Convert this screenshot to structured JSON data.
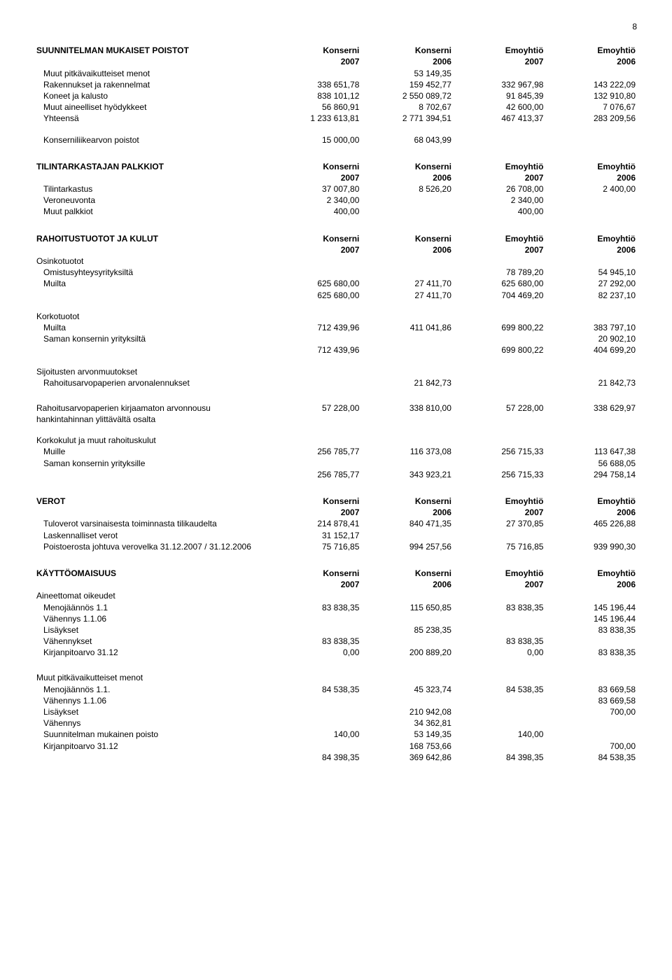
{
  "page_number": "8",
  "col_headers": {
    "c1_a": "Konserni",
    "c1_b": "2007",
    "c2_a": "Konserni",
    "c2_b": "2006",
    "c3_a": "Emoyhtiö",
    "c3_b": "2007",
    "c4_a": "Emoyhtiö",
    "c4_b": "2006"
  },
  "sec1": {
    "title": "SUUNNITELMAN MUKAISET POISTOT",
    "rows": [
      {
        "l": "Muut pitkävaikutteiset menot",
        "ind": 1,
        "v": [
          "",
          "53 149,35",
          "",
          ""
        ]
      },
      {
        "l": "Rakennukset ja rakennelmat",
        "ind": 1,
        "v": [
          "338 651,78",
          "159 452,77",
          "332 967,98",
          "143 222,09"
        ]
      },
      {
        "l": "Koneet ja kalusto",
        "ind": 1,
        "v": [
          "838 101,12",
          "2 550 089,72",
          "91 845,39",
          "132 910,80"
        ]
      },
      {
        "l": "Muut aineelliset hyödykkeet",
        "ind": 1,
        "v": [
          "56 860,91",
          "8 702,67",
          "42 600,00",
          "7 076,67"
        ]
      },
      {
        "l": "Yhteensä",
        "ind": 1,
        "v": [
          "1 233 613,81",
          "2 771 394,51",
          "467 413,37",
          "283 209,56"
        ]
      }
    ],
    "extra": {
      "l": "Konserniliikearvon poistot",
      "ind": 1,
      "v": [
        "15 000,00",
        "68 043,99",
        "",
        ""
      ]
    }
  },
  "sec2": {
    "title": "TILINTARKASTAJAN PALKKIOT",
    "rows": [
      {
        "l": "Tilintarkastus",
        "ind": 1,
        "v": [
          "37 007,80",
          "8 526,20",
          "26 708,00",
          "2 400,00"
        ]
      },
      {
        "l": "Veroneuvonta",
        "ind": 1,
        "v": [
          "2 340,00",
          "",
          "2 340,00",
          ""
        ]
      },
      {
        "l": "Muut palkkiot",
        "ind": 1,
        "v": [
          "400,00",
          "",
          "400,00",
          ""
        ]
      }
    ]
  },
  "sec3": {
    "title": "RAHOITUSTUOTOT JA KULUT",
    "groups": [
      {
        "header": "Osinkotuotot",
        "rows": [
          {
            "l": "Omistusyhteysyrityksiltä",
            "ind": 1,
            "v": [
              "",
              "",
              "78 789,20",
              "54 945,10"
            ]
          },
          {
            "l": "Muilta",
            "ind": 1,
            "v": [
              "625 680,00",
              "27 411,70",
              "625 680,00",
              "27 292,00"
            ]
          },
          {
            "l": "",
            "ind": 1,
            "v": [
              "625 680,00",
              "27 411,70",
              "704 469,20",
              "82 237,10"
            ]
          }
        ]
      },
      {
        "header": "Korkotuotot",
        "rows": [
          {
            "l": "Muilta",
            "ind": 1,
            "v": [
              "712 439,96",
              "411 041,86",
              "699 800,22",
              "383 797,10"
            ]
          },
          {
            "l": "Saman konsernin yrityksiltä",
            "ind": 1,
            "v": [
              "",
              "",
              "",
              "20 902,10"
            ]
          },
          {
            "l": "",
            "ind": 1,
            "v": [
              "712 439,96",
              "",
              "699 800,22",
              "404 699,20"
            ]
          }
        ]
      },
      {
        "header": "Sijoitusten arvonmuutokset",
        "rows": [
          {
            "l": "Rahoitusarvopaperien arvonalennukset",
            "ind": 1,
            "v": [
              "",
              "21 842,73",
              "",
              "21 842,73"
            ]
          }
        ]
      }
    ],
    "rows2": [
      {
        "l": "Rahoitusarvopaperien kirjaamaton arvonnousu",
        "ind": 0,
        "v": [
          "57 228,00",
          "338 810,00",
          "57 228,00",
          "338 629,97"
        ]
      },
      {
        "l": "hankintahinnan ylittävältä osalta",
        "ind": 0,
        "v": [
          "",
          "",
          "",
          ""
        ]
      }
    ],
    "group2": {
      "header": "Korkokulut ja muut rahoituskulut",
      "rows": [
        {
          "l": "Muille",
          "ind": 1,
          "v": [
            "256 785,77",
            "116 373,08",
            "256 715,33",
            "113 647,38"
          ]
        },
        {
          "l": "Saman konsernin yrityksille",
          "ind": 1,
          "v": [
            "",
            "",
            "",
            "56 688,05"
          ]
        },
        {
          "l": "",
          "ind": 1,
          "v": [
            "256 785,77",
            "343 923,21",
            "256 715,33",
            "294 758,14"
          ]
        }
      ]
    }
  },
  "sec4": {
    "title": "VEROT",
    "rows": [
      {
        "l": "Tuloverot varsinaisesta toiminnasta tilikaudelta",
        "ind": 1,
        "v": [
          "214 878,41",
          "840 471,35",
          "27 370,85",
          "465 226,88"
        ]
      },
      {
        "l": "Laskennalliset verot",
        "ind": 1,
        "v": [
          "31 152,17",
          "",
          "",
          ""
        ]
      },
      {
        "l": "Poistoerosta johtuva verovelka 31.12.2007 / 31.12.2006",
        "ind": 1,
        "v": [
          "75 716,85",
          "994 257,56",
          "75 716,85",
          "939 990,30"
        ]
      }
    ]
  },
  "sec5": {
    "title": "KÄYTTÖOMAISUUS",
    "groups": [
      {
        "header": "Aineettomat oikeudet",
        "rows": [
          {
            "l": "Menojäännös 1.1",
            "ind": 1,
            "v": [
              "83 838,35",
              "115 650,85",
              "83 838,35",
              "145 196,44"
            ]
          },
          {
            "l": "Vähennys 1.1.06",
            "ind": 1,
            "v": [
              "",
              "",
              "",
              "145 196,44"
            ]
          },
          {
            "l": "Lisäykset",
            "ind": 1,
            "v": [
              "",
              "85 238,35",
              "",
              "83 838,35"
            ]
          },
          {
            "l": "Vähennykset",
            "ind": 1,
            "v": [
              "83 838,35",
              "",
              "83 838,35",
              ""
            ]
          },
          {
            "l": "Kirjanpitoarvo 31.12",
            "ind": 1,
            "v": [
              "0,00",
              "200 889,20",
              "0,00",
              "83 838,35"
            ]
          }
        ]
      },
      {
        "header": "Muut pitkävaikutteiset menot",
        "rows": [
          {
            "l": "Menojäännös 1.1.",
            "ind": 1,
            "v": [
              "84 538,35",
              "45 323,74",
              "84 538,35",
              "83 669,58"
            ]
          },
          {
            "l": "Vähennys 1.1.06",
            "ind": 1,
            "v": [
              "",
              "",
              "",
              "83 669,58"
            ]
          },
          {
            "l": "Lisäykset",
            "ind": 1,
            "v": [
              "",
              "210 942,08",
              "",
              "700,00"
            ]
          },
          {
            "l": "Vähennys",
            "ind": 1,
            "v": [
              "",
              "34 362,81",
              "",
              ""
            ]
          },
          {
            "l": "Suunnitelman mukainen poisto",
            "ind": 1,
            "v": [
              "140,00",
              "53 149,35",
              "140,00",
              ""
            ]
          },
          {
            "l": "Kirjanpitoarvo 31.12",
            "ind": 1,
            "v": [
              "",
              "168 753,66",
              "",
              "700,00"
            ]
          },
          {
            "l": "",
            "ind": 1,
            "v": [
              "84 398,35",
              "369 642,86",
              "84 398,35",
              "84 538,35"
            ]
          }
        ]
      }
    ]
  }
}
